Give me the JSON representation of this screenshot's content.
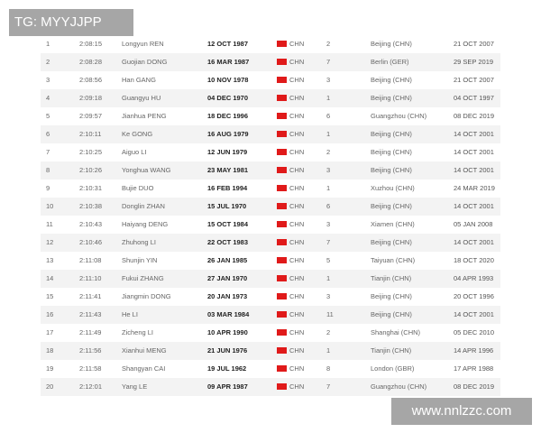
{
  "watermarks": {
    "top_left": "TG: MYYJJPP",
    "bottom_right": "www.nnlzzc.com"
  },
  "colors": {
    "flag": "#e01a1a",
    "stripe": "#f3f3f3"
  },
  "rows": [
    {
      "rank": "1",
      "time": "2:08:15",
      "name": "Longyun REN",
      "dob": "12 OCT 1987",
      "nat": "CHN",
      "pos": "2",
      "venue": "Beijing (CHN)",
      "date": "21 OCT 2007"
    },
    {
      "rank": "2",
      "time": "2:08:28",
      "name": "Guojian DONG",
      "dob": "16 MAR 1987",
      "nat": "CHN",
      "pos": "7",
      "venue": "Berlin (GER)",
      "date": "29 SEP 2019"
    },
    {
      "rank": "3",
      "time": "2:08:56",
      "name": "Han GANG",
      "dob": "10 NOV 1978",
      "nat": "CHN",
      "pos": "3",
      "venue": "Beijing (CHN)",
      "date": "21 OCT 2007"
    },
    {
      "rank": "4",
      "time": "2:09:18",
      "name": "Guangyu HU",
      "dob": "04 DEC 1970",
      "nat": "CHN",
      "pos": "1",
      "venue": "Beijing (CHN)",
      "date": "04 OCT 1997"
    },
    {
      "rank": "5",
      "time": "2:09:57",
      "name": "Jianhua PENG",
      "dob": "18 DEC 1996",
      "nat": "CHN",
      "pos": "6",
      "venue": "Guangzhou (CHN)",
      "date": "08 DEC 2019"
    },
    {
      "rank": "6",
      "time": "2:10:11",
      "name": "Ke GONG",
      "dob": "16 AUG 1979",
      "nat": "CHN",
      "pos": "1",
      "venue": "Beijing (CHN)",
      "date": "14 OCT 2001"
    },
    {
      "rank": "7",
      "time": "2:10:25",
      "name": "Aiguo LI",
      "dob": "12 JUN 1979",
      "nat": "CHN",
      "pos": "2",
      "venue": "Beijing (CHN)",
      "date": "14 OCT 2001"
    },
    {
      "rank": "8",
      "time": "2:10:26",
      "name": "Yonghua WANG",
      "dob": "23 MAY 1981",
      "nat": "CHN",
      "pos": "3",
      "venue": "Beijing (CHN)",
      "date": "14 OCT 2001"
    },
    {
      "rank": "9",
      "time": "2:10:31",
      "name": "Bujie DUO",
      "dob": "16 FEB 1994",
      "nat": "CHN",
      "pos": "1",
      "venue": "Xuzhou (CHN)",
      "date": "24 MAR 2019"
    },
    {
      "rank": "10",
      "time": "2:10:38",
      "name": "Donglin ZHAN",
      "dob": "15 JUL 1970",
      "nat": "CHN",
      "pos": "6",
      "venue": "Beijing (CHN)",
      "date": "14 OCT 2001"
    },
    {
      "rank": "11",
      "time": "2:10:43",
      "name": "Haiyang DENG",
      "dob": "15 OCT 1984",
      "nat": "CHN",
      "pos": "3",
      "venue": "Xiamen (CHN)",
      "date": "05 JAN 2008"
    },
    {
      "rank": "12",
      "time": "2:10:46",
      "name": "Zhuhong LI",
      "dob": "22 OCT 1983",
      "nat": "CHN",
      "pos": "7",
      "venue": "Beijing (CHN)",
      "date": "14 OCT 2001"
    },
    {
      "rank": "13",
      "time": "2:11:08",
      "name": "Shunjin YIN",
      "dob": "26 JAN 1985",
      "nat": "CHN",
      "pos": "5",
      "venue": "Taiyuan (CHN)",
      "date": "18 OCT 2020"
    },
    {
      "rank": "14",
      "time": "2:11:10",
      "name": "Fukui ZHANG",
      "dob": "27 JAN 1970",
      "nat": "CHN",
      "pos": "1",
      "venue": "Tianjin (CHN)",
      "date": "04 APR 1993"
    },
    {
      "rank": "15",
      "time": "2:11:41",
      "name": "Jiangmin DONG",
      "dob": "20 JAN 1973",
      "nat": "CHN",
      "pos": "3",
      "venue": "Beijing (CHN)",
      "date": "20 OCT 1996"
    },
    {
      "rank": "16",
      "time": "2:11:43",
      "name": "He LI",
      "dob": "03 MAR 1984",
      "nat": "CHN",
      "pos": "11",
      "venue": "Beijing (CHN)",
      "date": "14 OCT 2001"
    },
    {
      "rank": "17",
      "time": "2:11:49",
      "name": "Zicheng LI",
      "dob": "10 APR 1990",
      "nat": "CHN",
      "pos": "2",
      "venue": "Shanghai (CHN)",
      "date": "05 DEC 2010"
    },
    {
      "rank": "18",
      "time": "2:11:56",
      "name": "Xianhui MENG",
      "dob": "21 JUN 1976",
      "nat": "CHN",
      "pos": "1",
      "venue": "Tianjin (CHN)",
      "date": "14 APR 1996"
    },
    {
      "rank": "19",
      "time": "2:11:58",
      "name": "Shangyan CAI",
      "dob": "19 JUL 1962",
      "nat": "CHN",
      "pos": "8",
      "venue": "London (GBR)",
      "date": "17 APR 1988"
    },
    {
      "rank": "20",
      "time": "2:12:01",
      "name": "Yang LE",
      "dob": "09 APR 1987",
      "nat": "CHN",
      "pos": "7",
      "venue": "Guangzhou (CHN)",
      "date": "08 DEC 2019"
    }
  ]
}
